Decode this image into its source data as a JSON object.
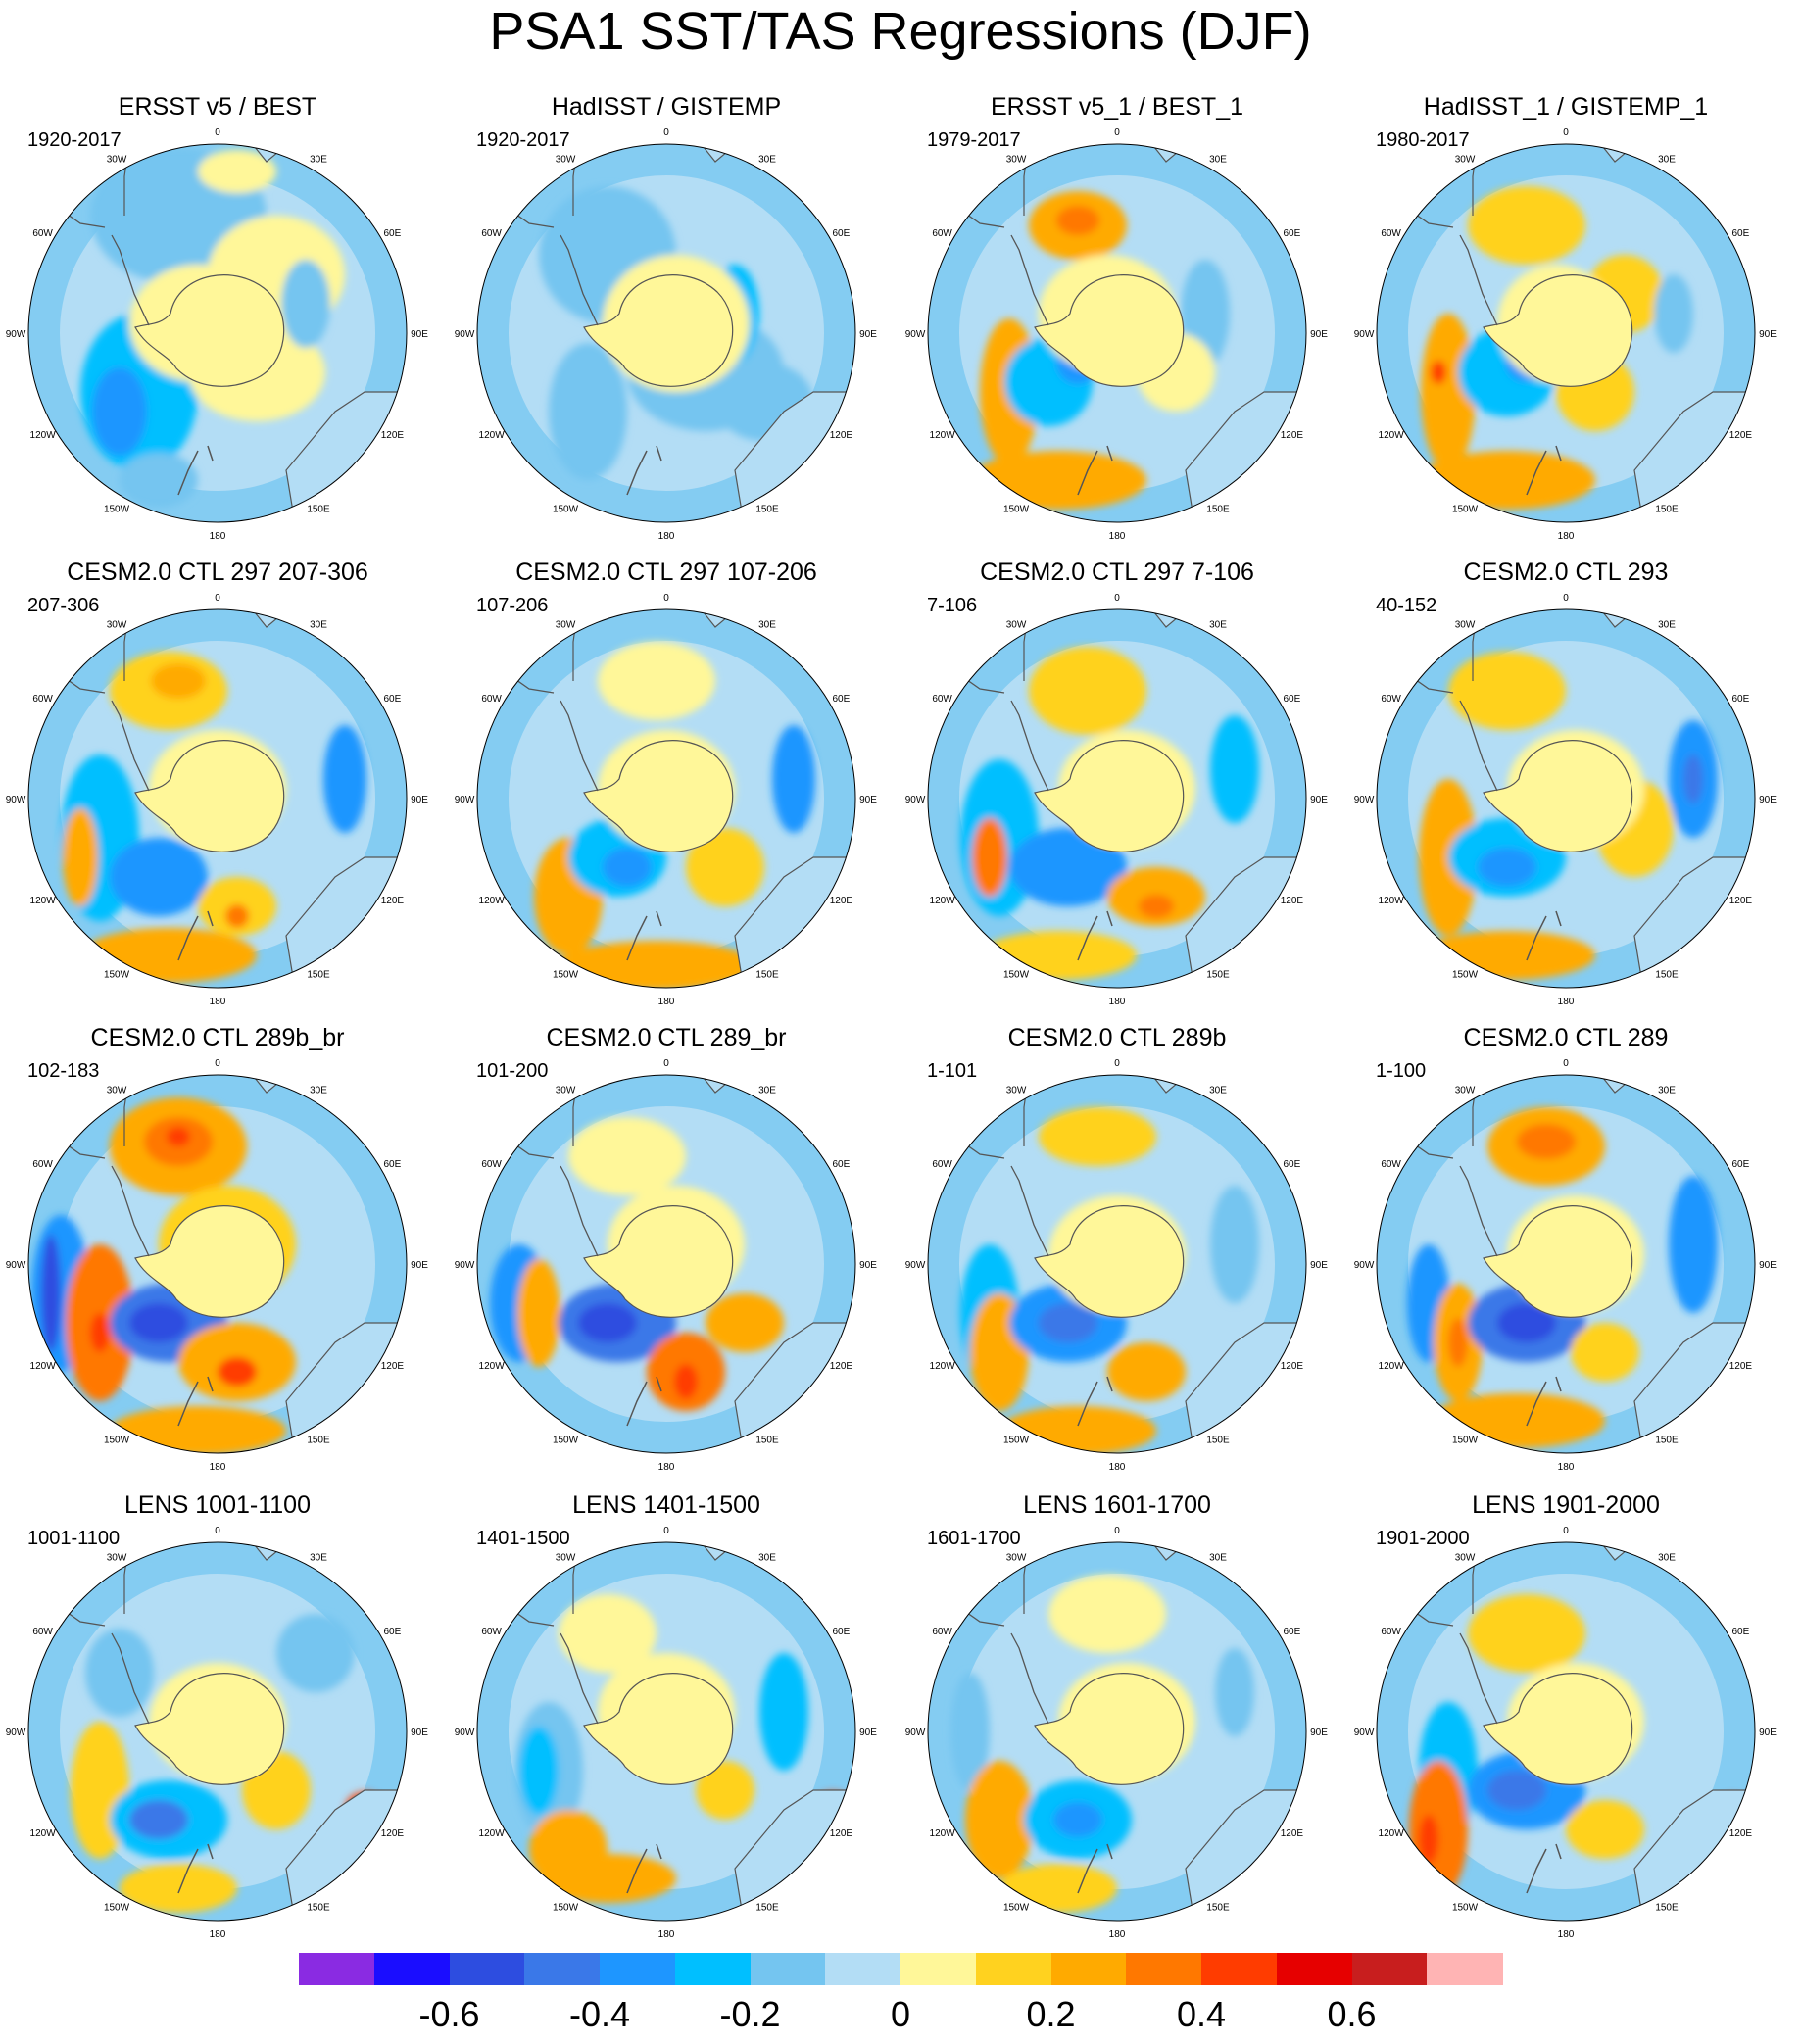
{
  "title": "PSA1 SST/TAS Regressions (DJF)",
  "longitude_labels": [
    "0",
    "30E",
    "60E",
    "90E",
    "120E",
    "150E",
    "180",
    "150W",
    "120W",
    "90W",
    "60W",
    "30W"
  ],
  "panels": [
    {
      "title": "ERSST v5 / BEST",
      "period": "1920-2017"
    },
    {
      "title": "HadISST / GISTEMP",
      "period": "1920-2017"
    },
    {
      "title": "ERSST v5_1 / BEST_1",
      "period": "1979-2017"
    },
    {
      "title": "HadISST_1 / GISTEMP_1",
      "period": "1980-2017"
    },
    {
      "title": "CESM2.0 CTL 297 207-306",
      "period": "207-306"
    },
    {
      "title": "CESM2.0 CTL 297 107-206",
      "period": "107-206"
    },
    {
      "title": "CESM2.0 CTL 297 7-106",
      "period": "7-106"
    },
    {
      "title": "CESM2.0 CTL 293",
      "period": "40-152"
    },
    {
      "title": "CESM2.0 CTL 289b_br",
      "period": "102-183"
    },
    {
      "title": "CESM2.0 CTL 289_br",
      "period": "101-200"
    },
    {
      "title": "CESM2.0 CTL 289b",
      "period": "1-101"
    },
    {
      "title": "CESM2.0 CTL 289",
      "period": "1-100"
    },
    {
      "title": "LENS 1001-1100",
      "period": "1001-1100"
    },
    {
      "title": "LENS 1401-1500",
      "period": "1401-1500"
    },
    {
      "title": "LENS 1601-1700",
      "period": "1601-1700"
    },
    {
      "title": "LENS 1901-2000",
      "period": "1901-2000"
    }
  ],
  "colorbar": {
    "colors": [
      "#8a2be2",
      "#1a0dff",
      "#2d4de0",
      "#3a78e8",
      "#1e96ff",
      "#00bfff",
      "#74c5f0",
      "#b3ddf5",
      "#fff799",
      "#ffd21f",
      "#ffaa00",
      "#ff7800",
      "#ff3c00",
      "#e60000",
      "#c81e1e",
      "#ffb4b4"
    ],
    "labels": [
      {
        "text": "-0.6",
        "value": -0.6
      },
      {
        "text": "-0.4",
        "value": -0.4
      },
      {
        "text": "-0.2",
        "value": -0.2
      },
      {
        "text": "0",
        "value": 0
      },
      {
        "text": "0.2",
        "value": 0.2
      },
      {
        "text": "0.4",
        "value": 0.4
      },
      {
        "text": "0.6",
        "value": 0.6
      }
    ]
  }
}
